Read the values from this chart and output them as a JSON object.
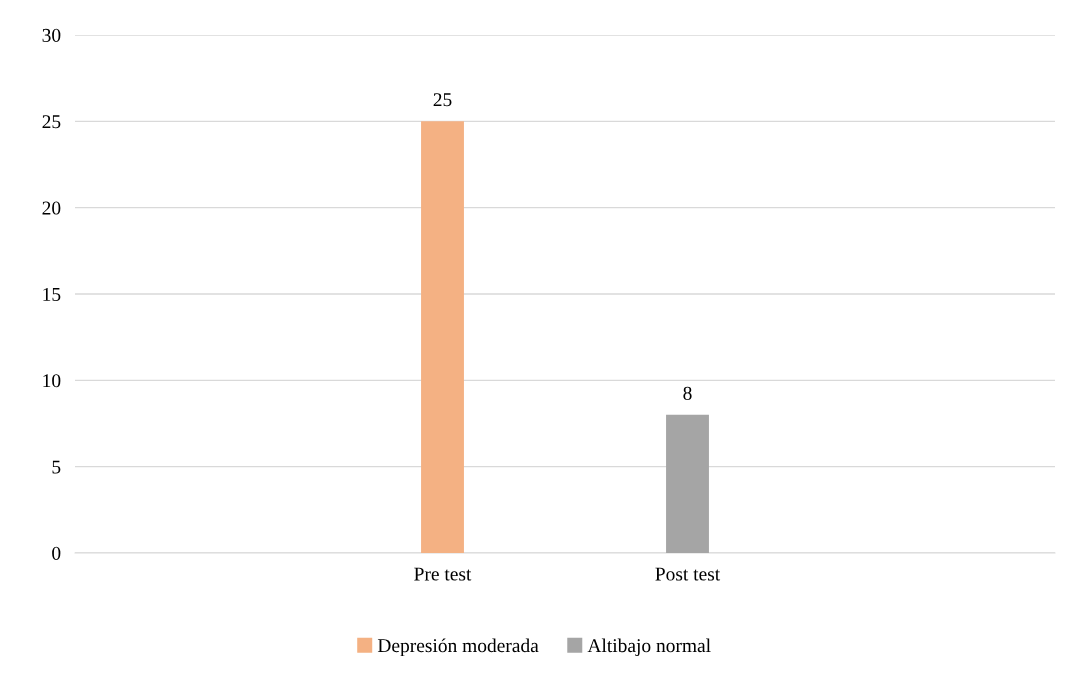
{
  "chart_data": {
    "type": "bar",
    "categories": [
      null,
      "Pre test",
      "Post test",
      null
    ],
    "series": [
      {
        "name": "Depresión moderada",
        "color": "#f4b183",
        "values": [
          null,
          25,
          null,
          null
        ]
      },
      {
        "name": "Altibajo normal",
        "color": "#a5a5a5",
        "values": [
          null,
          null,
          8,
          null
        ]
      }
    ],
    "ylim": [
      0,
      30
    ],
    "yticks": [
      0,
      5,
      10,
      15,
      20,
      25,
      30
    ],
    "grid": "y",
    "legend": "bottom",
    "data_labels": true
  }
}
